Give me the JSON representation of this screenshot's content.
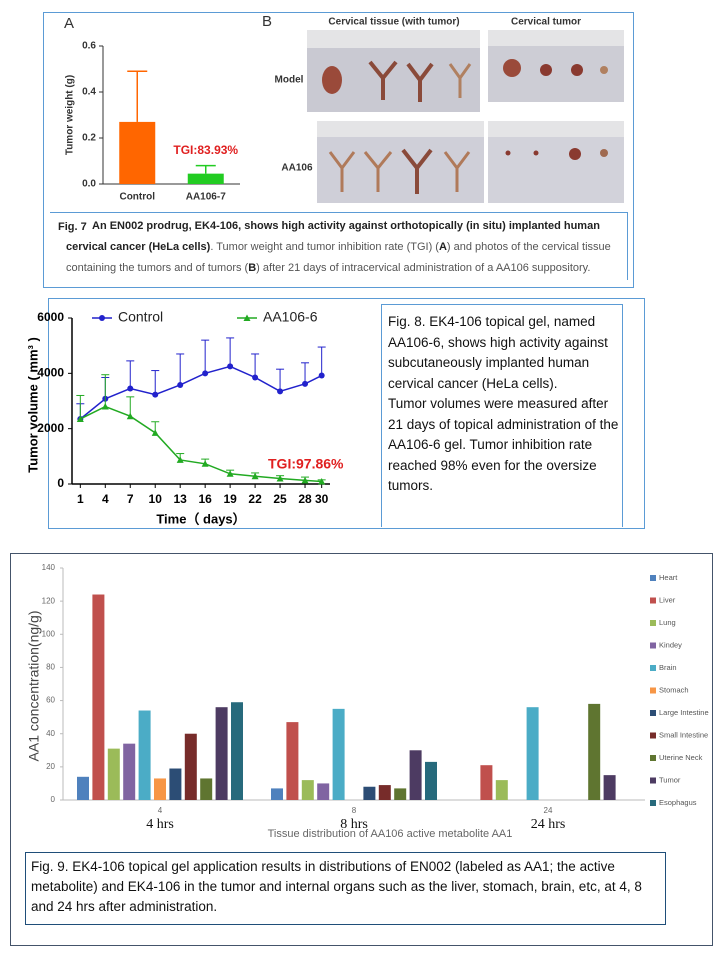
{
  "chart_data": [
    {
      "type": "bar",
      "panel_label": "A",
      "categories": [
        "Control",
        "AA106-7"
      ],
      "values": [
        0.27,
        0.045
      ],
      "errors": [
        0.22,
        0.035
      ],
      "colors": [
        "#ff6600",
        "#22cc22"
      ],
      "ylabel": "Tumor weight (g)",
      "ylim": [
        0,
        0.6
      ],
      "yticks": [
        {
          "value": 0,
          "label": "0.0"
        },
        0.2,
        0.4,
        0.6
      ],
      "annotation": "TGI:83.93%"
    },
    {
      "type": "line",
      "x": [
        1,
        4,
        7,
        10,
        13,
        16,
        19,
        22,
        25,
        28,
        30
      ],
      "xlim": [
        0,
        31
      ],
      "xticks": [
        1,
        4,
        7,
        10,
        13,
        16,
        19,
        22,
        25,
        28,
        30
      ],
      "ylim": [
        0,
        6000
      ],
      "yticks": [
        0,
        2000,
        4000,
        6000
      ],
      "xlabel": "Time（ days）",
      "ylabel": "Tumor volume ( mm³ )",
      "annotation": "TGI:97.86%",
      "series": [
        {
          "name": "Control",
          "color": "#2222cc",
          "marker": "circle",
          "values": [
            2350,
            3080,
            3450,
            3230,
            3580,
            4000,
            4250,
            3850,
            3350,
            3620,
            3920
          ],
          "errors": [
            550,
            770,
            1000,
            870,
            1120,
            1200,
            1030,
            850,
            800,
            760,
            1030
          ]
        },
        {
          "name": "AA106-6",
          "color": "#22aa22",
          "marker": "triangle",
          "values": [
            2350,
            2800,
            2450,
            1850,
            870,
            730,
            370,
            280,
            200,
            130,
            90
          ],
          "errors": [
            850,
            1150,
            700,
            400,
            230,
            170,
            130,
            120,
            100,
            120,
            60
          ]
        }
      ]
    },
    {
      "type": "grouped-bar",
      "categories": [
        "4",
        "8",
        "24"
      ],
      "category_notes": [
        "4 hrs",
        "8 hrs",
        "24 hrs"
      ],
      "ylim": [
        0,
        140
      ],
      "yticks": [
        0,
        20,
        40,
        60,
        80,
        100,
        120,
        140
      ],
      "ylabel": "AA1 concentration(ng/g)",
      "xlabel": "Tissue distribution of AA106 active metabolite AA1",
      "series": [
        {
          "name": "Heart",
          "color": "#4f81bd",
          "values": [
            14,
            7,
            null
          ]
        },
        {
          "name": "Liver",
          "color": "#c0504d",
          "values": [
            124,
            47,
            21
          ]
        },
        {
          "name": "Lung",
          "color": "#9bbb59",
          "values": [
            31,
            12,
            12
          ]
        },
        {
          "name": "Kindey",
          "color": "#8064a2",
          "values": [
            34,
            10,
            null
          ]
        },
        {
          "name": "Brain",
          "color": "#4bacc6",
          "values": [
            54,
            55,
            56
          ]
        },
        {
          "name": "Stomach",
          "color": "#f79646",
          "values": [
            13,
            null,
            null
          ]
        },
        {
          "name": "Large Intestine",
          "color": "#2c4d75",
          "values": [
            19,
            8,
            null
          ]
        },
        {
          "name": "Small Intestine",
          "color": "#772c2a",
          "values": [
            40,
            9,
            null
          ]
        },
        {
          "name": "Uterine Neck",
          "color": "#5f7530",
          "values": [
            13,
            7,
            58
          ]
        },
        {
          "name": "Tumor",
          "color": "#4d3b62",
          "values": [
            56,
            30,
            15
          ]
        },
        {
          "name": "Esophagus",
          "color": "#276a7c",
          "values": [
            59,
            23,
            null
          ]
        }
      ]
    }
  ],
  "panel_b": {
    "label": "B",
    "column_titles": [
      "Cervical tissue (with tumor)",
      "Cervical tumor"
    ],
    "row_labels": [
      "Model",
      "AA106"
    ]
  },
  "fig7": {
    "label": "Fig. 7",
    "caption": [
      {
        "text": "An EN002 prodrug, EK4-106, shows high activity against orthotopically (in situ) implanted human cervical cancer (HeLa cells)",
        "bold": true
      },
      {
        "text": ". Tumor weight and tumor inhibition rate (TGI) ("
      },
      {
        "text": "A",
        "bold": true
      },
      {
        "text": ") and photos of the cervical tissue containing the tumors and of tumors ("
      },
      {
        "text": "B",
        "bold": true
      },
      {
        "text": ") after 21 days of intracervical administration of a AA106 suppository."
      }
    ]
  },
  "fig8": {
    "caption": [
      "Fig. 8. EK4-106 topical gel, named AA106-6, shows high activity against subcutaneously implanted human cervical cancer (HeLa cells).",
      "Tumor volumes were measured after 21 days of topical administration of the AA106-6 gel. Tumor inhibition rate reached 98% even for the oversize tumors."
    ]
  },
  "fig9": {
    "caption": "Fig. 9. EK4-106 topical gel application results in distributions of EN002 (labeled as AA1; the active metabolite) and EK4-106 in the tumor and internal organs such as the liver, stomach, brain, etc, at 4, 8 and 24 hrs after administration."
  }
}
